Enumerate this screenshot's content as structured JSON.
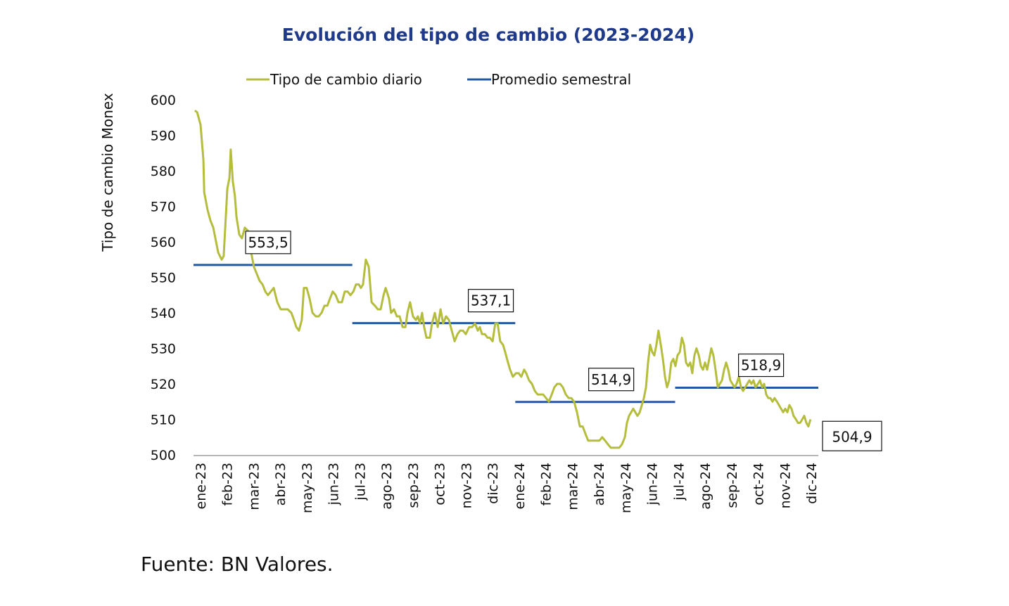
{
  "chart_data": {
    "type": "line",
    "title": "Evolución del tipo de cambio (2023-2024)",
    "xlabel": "",
    "ylabel": "Tipo de cambio Monex",
    "ylim": [
      500,
      600
    ],
    "yticks": [
      500,
      510,
      520,
      530,
      540,
      550,
      560,
      570,
      580,
      590,
      600
    ],
    "xlim_months": [
      0,
      24
    ],
    "xtick_labels": [
      "ene-23",
      "feb-23",
      "mar-23",
      "abr-23",
      "may-23",
      "jun-23",
      "jul-23",
      "ago-23",
      "sep-23",
      "oct-23",
      "nov-23",
      "dic-23",
      "ene-24",
      "feb-24",
      "mar-24",
      "abr-24",
      "may-24",
      "jun-24",
      "jul-24",
      "ago-24",
      "sep-24",
      "oct-24",
      "nov-24",
      "dic-24"
    ],
    "grid": false,
    "legend": {
      "position": "top",
      "entries": [
        {
          "name": "Tipo de cambio diario",
          "color": "#b5bd3c"
        },
        {
          "name": "Promedio semestral",
          "color": "#2457a0"
        }
      ]
    },
    "series": [
      {
        "name": "Tipo de cambio diario",
        "color": "#b5bd3c",
        "x_months": [
          0.05,
          0.14,
          0.27,
          0.38,
          0.41,
          0.54,
          0.65,
          0.76,
          0.95,
          1.08,
          1.16,
          1.3,
          1.38,
          1.43,
          1.51,
          1.59,
          1.65,
          1.76,
          1.86,
          1.97,
          2.11,
          2.19,
          2.32,
          2.43,
          2.54,
          2.65,
          2.76,
          2.86,
          2.97,
          3.08,
          3.22,
          3.35,
          3.49,
          3.62,
          3.76,
          3.86,
          3.95,
          4.05,
          4.16,
          4.24,
          4.35,
          4.46,
          4.57,
          4.7,
          4.81,
          4.92,
          5.03,
          5.14,
          5.24,
          5.35,
          5.46,
          5.57,
          5.7,
          5.81,
          5.92,
          6.03,
          6.14,
          6.24,
          6.35,
          6.43,
          6.51,
          6.62,
          6.73,
          6.84,
          6.97,
          7.08,
          7.19,
          7.3,
          7.38,
          7.51,
          7.59,
          7.7,
          7.81,
          7.92,
          8.03,
          8.14,
          8.22,
          8.32,
          8.43,
          8.54,
          8.62,
          8.7,
          8.78,
          8.86,
          8.95,
          9.08,
          9.16,
          9.27,
          9.38,
          9.49,
          9.59,
          9.7,
          9.81,
          9.92,
          10.03,
          10.14,
          10.24,
          10.35,
          10.46,
          10.59,
          10.7,
          10.81,
          10.92,
          11.0,
          11.08,
          11.19,
          11.3,
          11.38,
          11.49,
          11.59,
          11.68,
          11.78,
          11.89,
          11.97,
          12.08,
          12.16,
          12.27,
          12.38,
          12.49,
          12.59,
          12.7,
          12.78,
          12.89,
          13.0,
          13.11,
          13.22,
          13.32,
          13.43,
          13.54,
          13.65,
          13.76,
          13.86,
          13.97,
          14.08,
          14.19,
          14.3,
          14.41,
          14.51,
          14.62,
          14.73,
          14.84,
          14.95,
          15.05,
          15.16,
          15.27,
          15.38,
          15.49,
          15.59,
          15.7,
          15.81,
          15.92,
          16.03,
          16.14,
          16.24,
          16.35,
          16.46,
          16.57,
          16.65,
          16.73,
          16.81,
          16.89,
          16.97,
          17.05,
          17.14,
          17.22,
          17.3,
          17.38,
          17.46,
          17.54,
          17.62,
          17.7,
          17.78,
          17.86,
          17.95,
          18.03,
          18.11,
          18.19,
          18.27,
          18.35,
          18.43,
          18.51,
          18.59,
          18.68,
          18.76,
          18.84,
          18.92,
          19.0,
          19.08,
          19.16,
          19.24,
          19.32,
          19.41,
          19.49,
          19.57,
          19.65,
          19.73,
          19.81,
          19.89,
          19.97,
          20.05,
          20.14,
          20.22,
          20.3,
          20.38,
          20.46,
          20.54,
          20.62,
          20.7,
          20.78,
          20.86,
          20.95,
          21.03,
          21.11,
          21.19,
          21.27,
          21.35,
          21.43,
          21.51,
          21.59,
          21.68,
          21.76,
          21.84,
          21.92,
          22.0,
          22.08,
          22.16,
          22.24,
          22.32,
          22.41,
          22.49,
          22.57,
          22.65,
          22.73,
          22.81,
          22.89,
          22.97,
          23.05,
          23.14,
          23.22,
          23.3,
          23.38,
          23.46,
          23.54,
          23.62,
          23.7
        ],
        "values": [
          597,
          596.5,
          593,
          583,
          574,
          569,
          566,
          564,
          557,
          555,
          556,
          575,
          578,
          586,
          577,
          573,
          567,
          562,
          561,
          564,
          563,
          558,
          553,
          551,
          549,
          548,
          546,
          545,
          546,
          547,
          543,
          541,
          541,
          541,
          540,
          538,
          536,
          535,
          538,
          547,
          547,
          544,
          540,
          539,
          539,
          540,
          542,
          542,
          544,
          546,
          545,
          543,
          543,
          546,
          546,
          545,
          546,
          548,
          548,
          547,
          548,
          555,
          553,
          543,
          542,
          541,
          541,
          545,
          547,
          544,
          540,
          541,
          539,
          539,
          536,
          536,
          540,
          543,
          539,
          538,
          539,
          537,
          540,
          536,
          533,
          533,
          537,
          540,
          536,
          541,
          537,
          539,
          538,
          535,
          532,
          534,
          535,
          535,
          534,
          536,
          536,
          537,
          535,
          536,
          534,
          534,
          533,
          533,
          532,
          537,
          537,
          532,
          531,
          529,
          526,
          524,
          522,
          523,
          523,
          522,
          524,
          523,
          521,
          520,
          518,
          517,
          517,
          517,
          516,
          515,
          517,
          519,
          520,
          520,
          519,
          517,
          516,
          516,
          515,
          512,
          508,
          508,
          506,
          504,
          504,
          504,
          504,
          504,
          505,
          504,
          503,
          502,
          502,
          502,
          502,
          503,
          505,
          509,
          511,
          512,
          513,
          512,
          511,
          512,
          514,
          516,
          519,
          526,
          531,
          529,
          528,
          531,
          535,
          531,
          527,
          522,
          519,
          521,
          526,
          527,
          525,
          528,
          529,
          533,
          531,
          526,
          525,
          526,
          523,
          528,
          530,
          528,
          525,
          524,
          526,
          524,
          527,
          530,
          528,
          524,
          519,
          520,
          521,
          524,
          526,
          524,
          521,
          520,
          519,
          520,
          522,
          519,
          518,
          519,
          520,
          521,
          520,
          521,
          519,
          520,
          521,
          519,
          520,
          517,
          516,
          516,
          515,
          516,
          515,
          514,
          513,
          512,
          513,
          512,
          514,
          513,
          511,
          510,
          509,
          509,
          510,
          511,
          509,
          508,
          510,
          508,
          506,
          505,
          504.5,
          504.9
        ]
      },
      {
        "name": "Promedio semestral",
        "color": "#2457a0",
        "segments": [
          {
            "period": "ene-23 a jun-23",
            "start_month": 0,
            "end_month": 6.1,
            "value": 553.5,
            "label": "553,5"
          },
          {
            "period": "jul-23 a dic-23",
            "start_month": 6.1,
            "end_month": 12.36,
            "value": 537.1,
            "label": "537,1"
          },
          {
            "period": "ene-24 a jun-24",
            "start_month": 12.36,
            "end_month": 18.5,
            "value": 514.9,
            "label": "514,9"
          },
          {
            "period": "jul-24 a dic-24",
            "start_month": 18.5,
            "end_month": 24,
            "value": 518.9,
            "label": "518,9"
          }
        ]
      }
    ],
    "annotations": [
      {
        "text": "504,9",
        "refers_to": "último tipo de cambio diario",
        "value": 504.9
      }
    ]
  },
  "source": "Fuente: BN Valores."
}
